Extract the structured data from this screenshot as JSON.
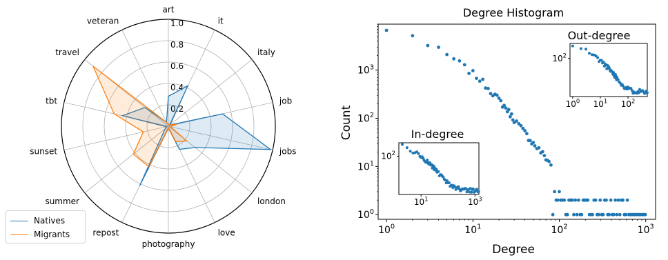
{
  "chart_data": [
    {
      "type": "radar",
      "categories": [
        "art",
        "it",
        "italy",
        "job",
        "jobs",
        "london",
        "love",
        "photography",
        "repost",
        "summer",
        "sunset",
        "tbt",
        "travel",
        "veteran"
      ],
      "radial_ticks": [
        "0.2",
        "0.4",
        "0.6",
        "0.8",
        "1.0"
      ],
      "rlim": [
        0,
        1.0
      ],
      "series": [
        {
          "name": "Natives",
          "color": "#1f77b4",
          "values": [
            0.28,
            0.42,
            0.02,
            0.52,
            0.98,
            0.32,
            0.24,
            0.02,
            0.62,
            0.04,
            0.02,
            0.44,
            0.28,
            0.04
          ]
        },
        {
          "name": "Migrants",
          "color": "#ff7f0e",
          "values": [
            0.02,
            0.02,
            0.02,
            0.08,
            0.02,
            0.22,
            0.16,
            0.02,
            0.42,
            0.42,
            0.24,
            0.52,
            0.9,
            0.04
          ]
        }
      ],
      "legend_position": "bottom-left"
    },
    {
      "type": "scatter",
      "title": "Degree Histogram",
      "xlabel": "Degree",
      "ylabel": "Count",
      "xscale": "log",
      "yscale": "log",
      "xlim": [
        0.8,
        1300
      ],
      "ylim": [
        0.8,
        9000
      ],
      "xticks": [
        {
          "v": 1,
          "m": "10",
          "e": "0"
        },
        {
          "v": 10,
          "m": "10",
          "e": "1"
        },
        {
          "v": 100,
          "m": "10",
          "e": "2"
        },
        {
          "v": 1000,
          "m": "10",
          "e": "3"
        }
      ],
      "yticks": [
        {
          "v": 1,
          "m": "10",
          "e": "0"
        },
        {
          "v": 10,
          "m": "10",
          "e": "1"
        },
        {
          "v": 100,
          "m": "10",
          "e": "2"
        },
        {
          "v": 1000,
          "m": "10",
          "e": "3"
        }
      ],
      "grid": false,
      "color": "#1f77b4",
      "series": [
        {
          "name": "",
          "approx_curve": [
            [
              1,
              6500
            ],
            [
              2,
              5500
            ],
            [
              3,
              3200
            ],
            [
              4,
              2600
            ],
            [
              5,
              2000
            ],
            [
              6,
              1700
            ],
            [
              7,
              1400
            ],
            [
              8,
              1150
            ],
            [
              10,
              850
            ],
            [
              12,
              650
            ],
            [
              15,
              430
            ],
            [
              18,
              300
            ],
            [
              20,
              240
            ],
            [
              25,
              150
            ],
            [
              30,
              95
            ],
            [
              40,
              50
            ],
            [
              50,
              30
            ],
            [
              60,
              21
            ],
            [
              70,
              15
            ],
            [
              80,
              11
            ],
            [
              100,
              7
            ],
            [
              120,
              4.5
            ],
            [
              150,
              3
            ],
            [
              200,
              2
            ],
            [
              300,
              1.4
            ],
            [
              400,
              1.1
            ],
            [
              1000,
              1
            ]
          ]
        }
      ],
      "insets": [
        {
          "title": "Out-degree",
          "xscale": "log",
          "yscale": "log",
          "xlim": [
            0.8,
            500
          ],
          "ylim": [
            3,
            400
          ],
          "xticks": [
            {
              "v": 1,
              "m": "10",
              "e": "0"
            },
            {
              "v": 10,
              "m": "10",
              "e": "1"
            },
            {
              "v": 100,
              "m": "10",
              "e": "2"
            }
          ],
          "yticks": [
            {
              "v": 100,
              "m": "10",
              "e": "2"
            }
          ],
          "approx_curve": [
            [
              1,
              300
            ],
            [
              2,
              260
            ],
            [
              3,
              210
            ],
            [
              5,
              150
            ],
            [
              8,
              100
            ],
            [
              12,
              70
            ],
            [
              20,
              40
            ],
            [
              30,
              25
            ],
            [
              50,
              12
            ],
            [
              80,
              7
            ],
            [
              150,
              5
            ],
            [
              300,
              5
            ]
          ]
        },
        {
          "title": "In-degree",
          "xscale": "log",
          "yscale": "log",
          "xlim": [
            1.5,
            1400
          ],
          "ylim": [
            2,
            400
          ],
          "xticks": [
            {
              "v": 10,
              "m": "10",
              "e": "1"
            },
            {
              "v": 1000,
              "m": "10",
              "e": "3"
            }
          ],
          "yticks": [
            {
              "v": 100,
              "m": "10",
              "e": "2"
            }
          ],
          "approx_curve": [
            [
              2,
              300
            ],
            [
              3,
              230
            ],
            [
              5,
              170
            ],
            [
              8,
              120
            ],
            [
              12,
              80
            ],
            [
              20,
              50
            ],
            [
              30,
              30
            ],
            [
              50,
              15
            ],
            [
              80,
              8
            ],
            [
              150,
              4.5
            ],
            [
              300,
              3.5
            ],
            [
              1000,
              3
            ]
          ]
        }
      ]
    }
  ]
}
